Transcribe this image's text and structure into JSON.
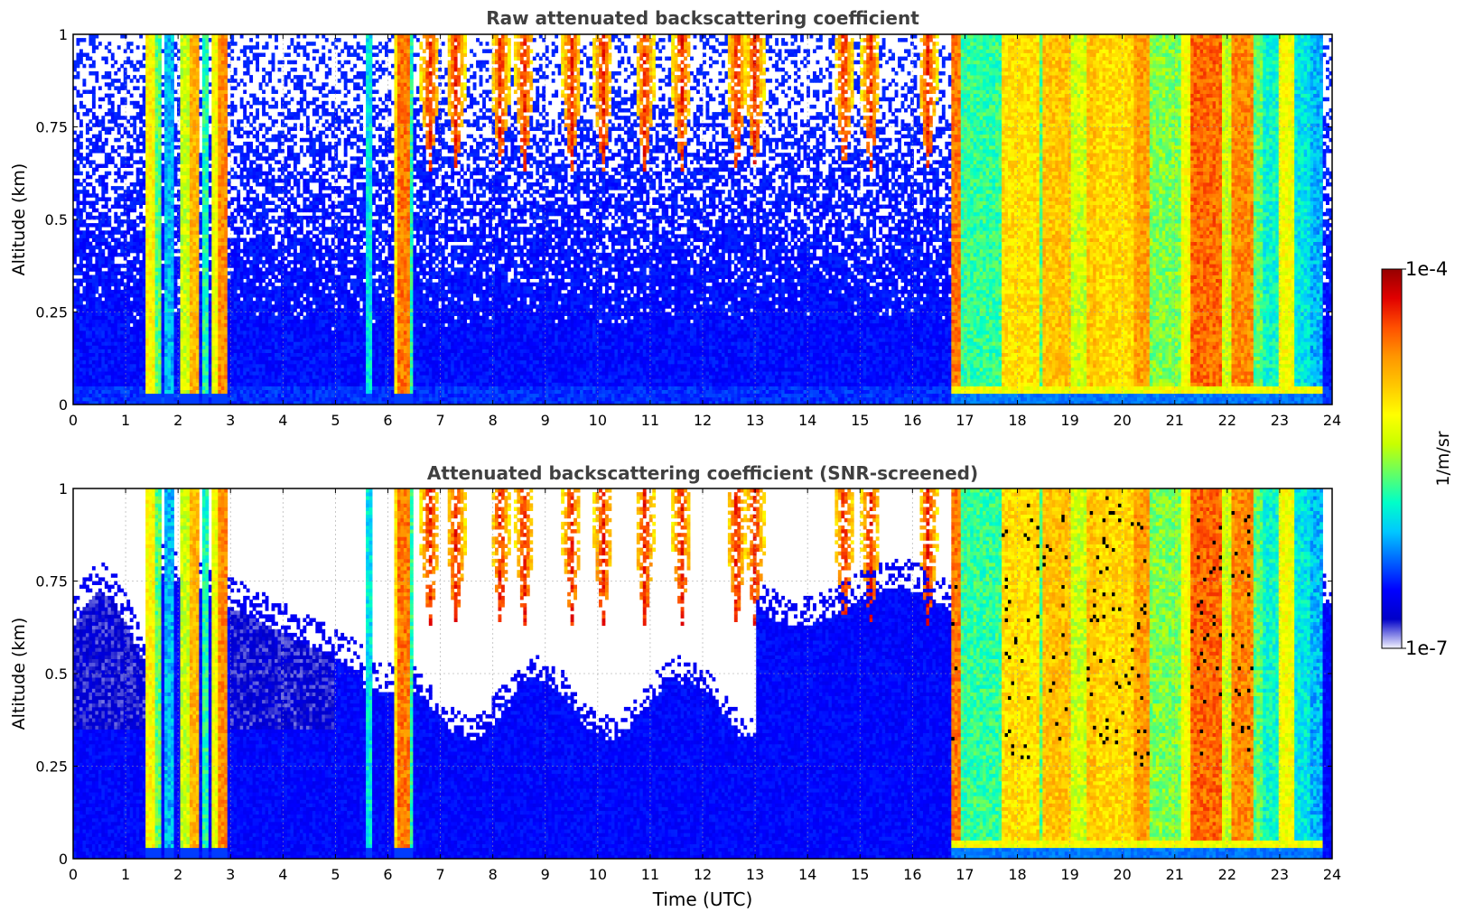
{
  "chart_data": [
    {
      "type": "heatmap",
      "title": "Raw attenuated backscattering coefficient",
      "xlabel": "",
      "ylabel": "Altitude (km)",
      "xlim": [
        0,
        24
      ],
      "ylim": [
        0,
        1
      ],
      "x_ticks": [
        "0",
        "1",
        "2",
        "3",
        "4",
        "5",
        "6",
        "7",
        "8",
        "9",
        "10",
        "11",
        "12",
        "13",
        "14",
        "15",
        "16",
        "17",
        "18",
        "19",
        "20",
        "21",
        "22",
        "23",
        "24"
      ],
      "y_ticks": [
        "0",
        "0.25",
        "0.5",
        "0.75",
        "1"
      ],
      "grid": true,
      "screened": false,
      "features": [
        {
          "name": "aerosol layer",
          "x_range": [
            0,
            24
          ],
          "alt_range": [
            0,
            0.55
          ],
          "level": "low (~1e-6.5)"
        },
        {
          "name": "cloud columns",
          "x_range": [
            1.4,
            3.0
          ],
          "alt_range": [
            0,
            1
          ],
          "level": "high"
        },
        {
          "name": "cloud column",
          "x_range": [
            6.1,
            6.4
          ],
          "alt_range": [
            0,
            1
          ],
          "level": "high"
        },
        {
          "name": "upper-level cloud streaks",
          "x_range": [
            6.5,
            16.7
          ],
          "alt_range": [
            0.65,
            1
          ],
          "level": "very high"
        },
        {
          "name": "precipitation / cloud period",
          "x_range": [
            16.75,
            23.8
          ],
          "alt_range": [
            0,
            1
          ],
          "level": "high to very high"
        }
      ]
    },
    {
      "type": "heatmap",
      "title": "Attenuated backscattering coefficient (SNR-screened)",
      "xlabel": "Time (UTC)",
      "ylabel": "Altitude (km)",
      "xlim": [
        0,
        24
      ],
      "ylim": [
        0,
        1
      ],
      "x_ticks": [
        "0",
        "1",
        "2",
        "3",
        "4",
        "5",
        "6",
        "7",
        "8",
        "9",
        "10",
        "11",
        "12",
        "13",
        "14",
        "15",
        "16",
        "17",
        "18",
        "19",
        "20",
        "21",
        "22",
        "23",
        "24"
      ],
      "y_ticks": [
        "0",
        "0.25",
        "0.5",
        "0.75",
        "1"
      ],
      "grid": true,
      "screened": true,
      "features": [
        {
          "name": "aerosol layer (screened)",
          "x_range": [
            0,
            16.7
          ],
          "alt_range": [
            0,
            0.75
          ],
          "level": "low"
        },
        {
          "name": "cloud columns",
          "x_range": [
            1.4,
            3.0
          ],
          "alt_range": [
            0,
            1
          ],
          "level": "high"
        },
        {
          "name": "cloud column",
          "x_range": [
            6.1,
            6.4
          ],
          "alt_range": [
            0,
            1
          ],
          "level": "high"
        },
        {
          "name": "precipitation / cloud period",
          "x_range": [
            16.75,
            23.8
          ],
          "alt_range": [
            0,
            1
          ],
          "level": "high to very high"
        }
      ]
    }
  ],
  "colorbar": {
    "label": "1/m/sr",
    "min_label": "1e-7",
    "max_label": "1e-4",
    "scale": "log",
    "colormap": [
      "#f4f4ff",
      "#0000c8",
      "#0000ff",
      "#0064ff",
      "#00c8ff",
      "#00ffc8",
      "#64ff64",
      "#c8ff00",
      "#ffff00",
      "#ffc800",
      "#ff9600",
      "#ff5000",
      "#e10000",
      "#960000"
    ]
  }
}
